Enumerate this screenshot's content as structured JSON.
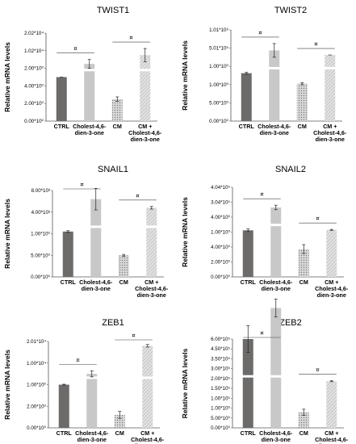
{
  "figure": {
    "y_axis_label": "Relative mRNA levels",
    "categories": [
      "CTRL",
      "Cholest-4,6-dien-3-one",
      "CM",
      "CM + Cholest-4,6-dien-3-one"
    ],
    "category_lines": [
      [
        "CTRL"
      ],
      [
        "Cholest-4,6-",
        "dien-3-one"
      ],
      [
        "CM"
      ],
      [
        "CM +",
        "Cholest-4,6-",
        "dien-3-one"
      ]
    ],
    "significance_symbol": "¤",
    "colors": {
      "ctrl": "#6d6a6a",
      "cholest": "#c8c8c8",
      "cm": "#8c8a8a",
      "cm_cholest": "#d6d6d6",
      "axis": "#595959",
      "bracket": "#404040"
    }
  },
  "chart_data": [
    {
      "type": "bar",
      "title": "TWIST1",
      "categories": [
        "CTRL",
        "Cholest-4,6-dien-3-one",
        "CM",
        "CM + Cholest-4,6-dien-3-one"
      ],
      "values": [
        1.0,
        1.3,
        0.5,
        1.5
      ],
      "errors": [
        0.0,
        0.1,
        0.05,
        0.15
      ],
      "y_ticks": [
        "0.00*10⁰",
        "2.00*10⁰",
        "4.00*10⁰",
        "2.00*10⁰",
        "1.02*10⁴",
        "2.02*10⁴"
      ],
      "broken_y_axis": true,
      "grid": false
    },
    {
      "type": "bar",
      "title": "TWIST2",
      "categories": [
        "CTRL",
        "Cholest-4,6-dien-3-one",
        "CM",
        "CM + Cholest-4,6-dien-3-one"
      ],
      "values": [
        1.05,
        1.55,
        0.82,
        1.45
      ],
      "errors": [
        0.02,
        0.15,
        0.02,
        0.0
      ],
      "y_ticks": [
        "0.00*10⁰",
        "5.00*10⁰",
        "1.00*10⁰",
        "1.00*10⁰",
        "5.01*10⁵",
        "1.01*10⁶"
      ],
      "broken_y_axis": true,
      "grid": false
    },
    {
      "type": "bar",
      "title": "SNAIL1",
      "categories": [
        "CTRL",
        "Cholest-4,6-dien-3-one",
        "CM",
        "CM + Cholest-4,6-dien-3-one"
      ],
      "values": [
        1.05,
        1.8,
        0.5,
        1.6
      ],
      "errors": [
        0.02,
        0.25,
        0.02,
        0.03
      ],
      "y_ticks": [
        "0.00*10⁰",
        "5.00*10⁰",
        "1.00*10⁰",
        "4.00*10³",
        "8.00*10³"
      ],
      "broken_y_axis": true,
      "grid": false
    },
    {
      "type": "bar",
      "title": "SNAIL2",
      "categories": [
        "CTRL",
        "Cholest-4,6-dien-3-one",
        "CM",
        "CM + Cholest-4,6-dien-3-one"
      ],
      "values": [
        1.04,
        1.55,
        0.62,
        1.05
      ],
      "errors": [
        0.03,
        0.05,
        0.1,
        0.01
      ],
      "y_ticks": [
        "0.00*10⁰",
        "2.00*10⁰",
        "4.00*10⁰",
        "1.00*10⁰",
        "4.00*10⁰",
        "3.04*10⁵",
        "4.04*10⁵"
      ],
      "broken_y_axis": true,
      "grid": false
    },
    {
      "type": "bar",
      "title": "ZEB1",
      "categories": [
        "CTRL",
        "Cholest-4,6-dien-3-one",
        "CM",
        "CM + Cholest-4,6-dien-3-one"
      ],
      "values": [
        1.0,
        1.25,
        0.3,
        1.9
      ],
      "errors": [
        0.01,
        0.07,
        0.08,
        0.03
      ],
      "y_ticks": [
        "0.00*10⁰",
        "2.00*10⁰",
        "1.00*10⁰",
        "1.00*10⁴",
        "2.01*10⁴"
      ],
      "broken_y_axis": true,
      "grid": false
    },
    {
      "type": "bar",
      "title": "ZEB2",
      "categories": [
        "CTRL",
        "Cholest-4,6-dien-3-one",
        "CM",
        "CM + Cholest-4,6-dien-3-one"
      ],
      "values": [
        2.0,
        2.7,
        0.35,
        1.05
      ],
      "errors": [
        0.3,
        0.2,
        0.07,
        0.01
      ],
      "y_ticks": [
        "0.00*10⁰",
        "5.00*10⁰",
        "1.00*10⁰",
        "1.00*10⁵",
        "1.50*10⁵",
        "2.00*10⁵",
        "3.00*10⁵",
        "3.50*10⁵",
        "4.50*10⁵",
        "6.00*10⁵"
      ],
      "broken_y_axis": true,
      "grid": false
    }
  ]
}
